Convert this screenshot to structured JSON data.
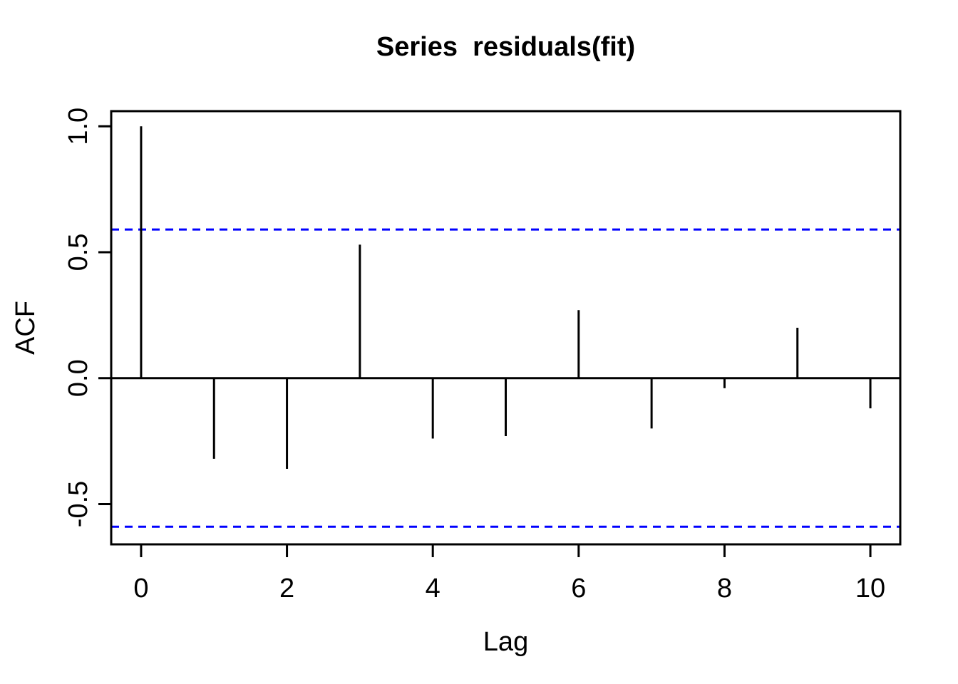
{
  "chart_data": {
    "type": "stem",
    "title": "Series  residuals(fit)",
    "xlabel": "Lag",
    "ylabel": "ACF",
    "x": [
      0,
      1,
      2,
      3,
      4,
      5,
      6,
      7,
      8,
      9,
      10
    ],
    "values": [
      1.0,
      -0.32,
      -0.36,
      0.53,
      -0.24,
      -0.23,
      0.27,
      -0.2,
      -0.04,
      0.2,
      -0.12
    ],
    "baseline": 0,
    "confidence_bands": {
      "upper": 0.59,
      "lower": -0.59,
      "line_style": "dashed",
      "color": "#0000FF"
    },
    "xlim": [
      -0.41,
      10.41
    ],
    "ylim": [
      -0.66,
      1.06
    ],
    "xticks": {
      "values": [
        0,
        2,
        4,
        6,
        8,
        10
      ],
      "labels": [
        "0",
        "2",
        "4",
        "6",
        "8",
        "10"
      ]
    },
    "yticks": {
      "values": [
        -0.5,
        0.0,
        0.5,
        1.0
      ],
      "labels": [
        "-0.5",
        "0.0",
        "0.5",
        "1.0"
      ]
    },
    "grid": false,
    "legend": null,
    "line_color": "#000000",
    "background_color": "#FFFFFF"
  }
}
